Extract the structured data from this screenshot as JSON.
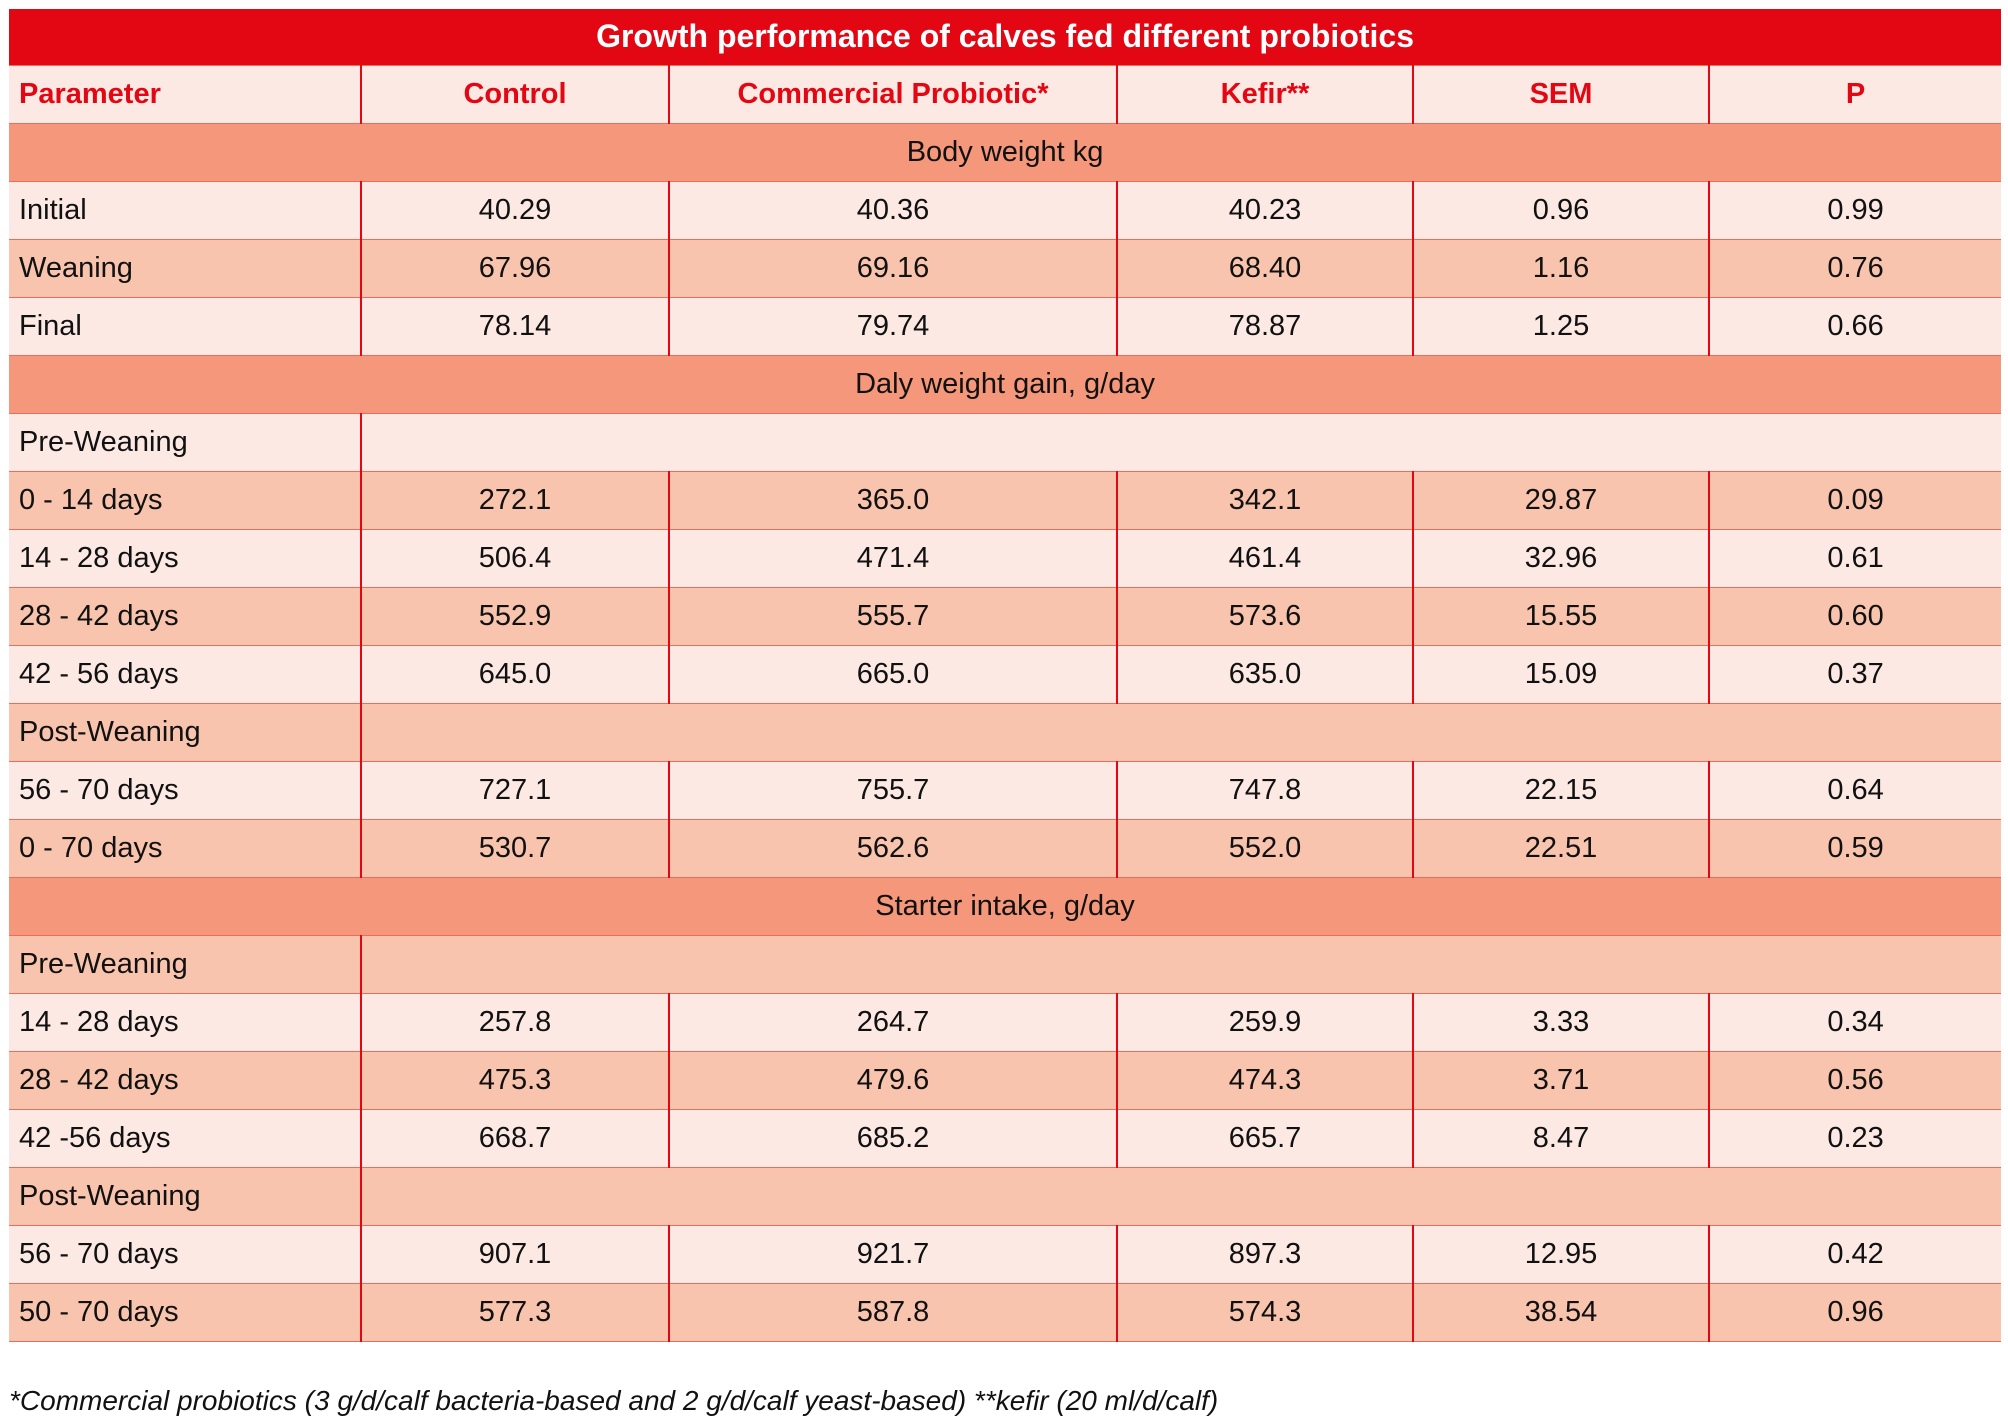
{
  "title": "Growth performance of calves fed different probiotics",
  "columns": [
    "Parameter",
    "Control",
    "Commercial Probiotic*",
    "Kefir**",
    "SEM",
    "P"
  ],
  "rows": [
    {
      "type": "section",
      "label": "Body weight kg"
    },
    {
      "type": "data",
      "shade": "light",
      "cells": [
        "Initial",
        "40.29",
        "40.36",
        "40.23",
        "0.96",
        "0.99"
      ]
    },
    {
      "type": "data",
      "shade": "dark",
      "cells": [
        "Weaning",
        "67.96",
        "69.16",
        "68.40",
        "1.16",
        "0.76"
      ]
    },
    {
      "type": "data",
      "shade": "light",
      "cells": [
        "Final",
        "78.14",
        "79.74",
        "78.87",
        "1.25",
        "0.66"
      ]
    },
    {
      "type": "section",
      "label": "Daly weight gain, g/day"
    },
    {
      "type": "sub",
      "shade": "light",
      "label": "Pre-Weaning"
    },
    {
      "type": "data",
      "shade": "dark",
      "cells": [
        "0 - 14 days",
        "272.1",
        "365.0",
        "342.1",
        "29.87",
        "0.09"
      ]
    },
    {
      "type": "data",
      "shade": "light",
      "cells": [
        "14 - 28 days",
        "506.4",
        "471.4",
        "461.4",
        "32.96",
        "0.61"
      ]
    },
    {
      "type": "data",
      "shade": "dark",
      "cells": [
        "28 - 42 days",
        "552.9",
        "555.7",
        "573.6",
        "15.55",
        "0.60"
      ]
    },
    {
      "type": "data",
      "shade": "light",
      "cells": [
        "42 - 56 days",
        "645.0",
        "665.0",
        "635.0",
        "15.09",
        "0.37"
      ]
    },
    {
      "type": "sub",
      "shade": "dark",
      "label": "Post-Weaning"
    },
    {
      "type": "data",
      "shade": "light",
      "cells": [
        "56 - 70 days",
        "727.1",
        "755.7",
        "747.8",
        "22.15",
        "0.64"
      ]
    },
    {
      "type": "data",
      "shade": "dark",
      "cells": [
        "0 - 70 days",
        "530.7",
        "562.6",
        "552.0",
        "22.51",
        "0.59"
      ]
    },
    {
      "type": "section",
      "label": "Starter intake, g/day"
    },
    {
      "type": "sub",
      "shade": "dark",
      "label": "Pre-Weaning"
    },
    {
      "type": "data",
      "shade": "light",
      "cells": [
        "14 - 28 days",
        "257.8",
        "264.7",
        "259.9",
        "3.33",
        "0.34"
      ]
    },
    {
      "type": "data",
      "shade": "dark",
      "cells": [
        "28 - 42 days",
        "475.3",
        "479.6",
        "474.3",
        "3.71",
        "0.56"
      ]
    },
    {
      "type": "data",
      "shade": "light",
      "cells": [
        "42 -56 days",
        "668.7",
        "685.2",
        "665.7",
        "8.47",
        "0.23"
      ]
    },
    {
      "type": "sub",
      "shade": "dark",
      "label": "Post-Weaning"
    },
    {
      "type": "data",
      "shade": "light",
      "cells": [
        "56 - 70 days",
        "907.1",
        "921.7",
        "897.3",
        "12.95",
        "0.42"
      ]
    },
    {
      "type": "data",
      "shade": "dark",
      "cells": [
        "50 - 70 days",
        "577.3",
        "587.8",
        "574.3",
        "38.54",
        "0.96"
      ]
    }
  ],
  "footnote": "*Commercial probiotics (3 g/d/calf bacteria-based and 2 g/d/calf yeast-based) **kefir (20 ml/d/calf)",
  "colors": {
    "title": "#e30613",
    "section": "#f4977a",
    "light": "#fce9e3",
    "dark": "#f8c4ae"
  }
}
